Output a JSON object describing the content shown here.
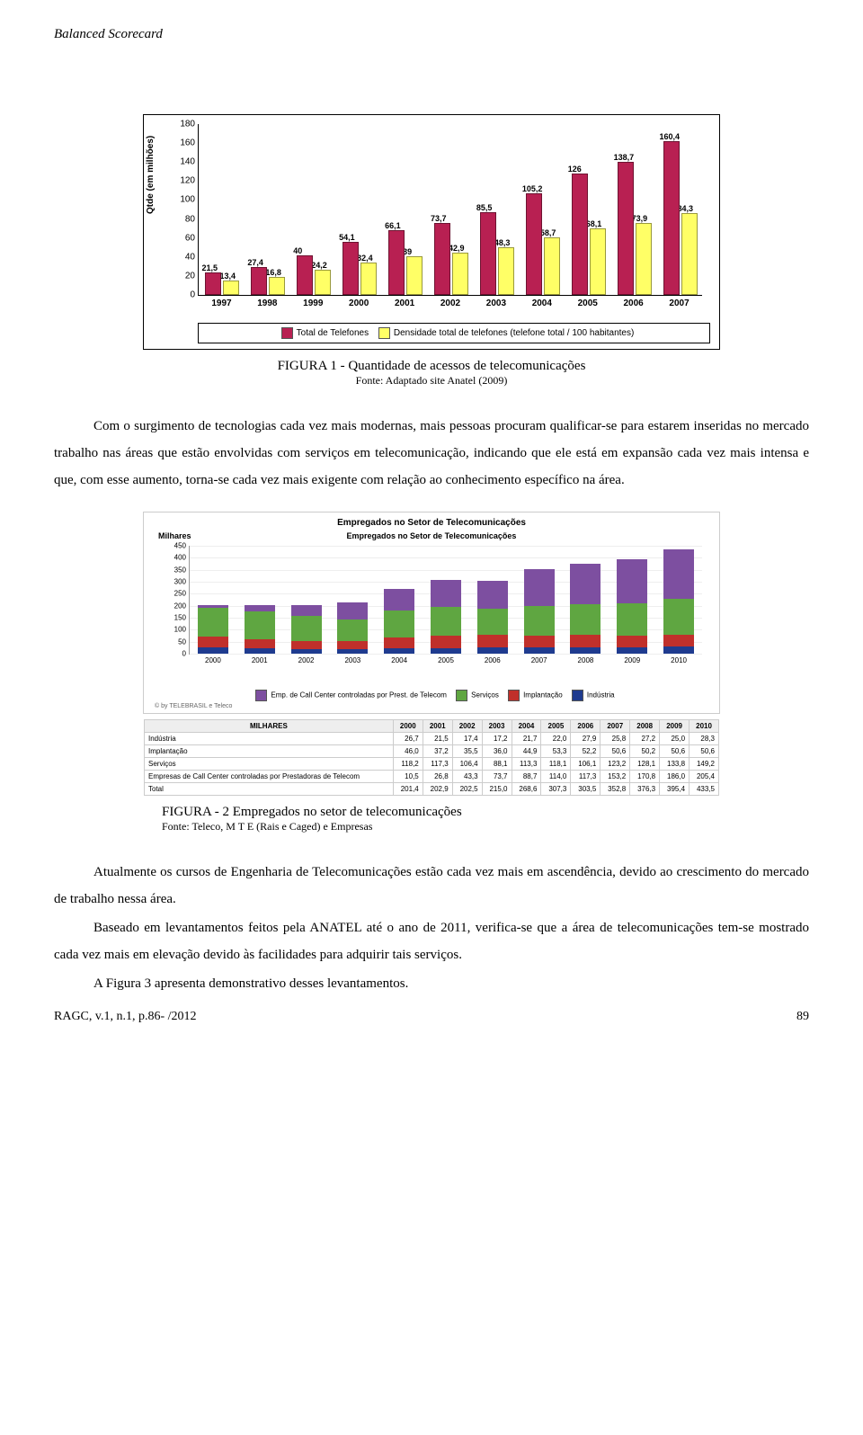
{
  "header": {
    "running_title": "Balanced Scorecard"
  },
  "chart1": {
    "type": "grouped-bar",
    "ylabel": "Qtde (em milhões)",
    "ymax": 180,
    "ytick_step": 20,
    "categories": [
      "1997",
      "1998",
      "1999",
      "2000",
      "2001",
      "2002",
      "2003",
      "2004",
      "2005",
      "2006",
      "2007"
    ],
    "series": [
      {
        "name": "Total de Telefones",
        "color": "#b82052",
        "values": [
          21.5,
          27.4,
          40,
          54.1,
          66.1,
          73.7,
          85.5,
          105.2,
          126,
          138.7,
          160.4
        ]
      },
      {
        "name": "Densidade total de telefones (telefone total / 100 habitantes)",
        "color": "#ffff66",
        "values": [
          13.4,
          16.8,
          24.2,
          32.4,
          39,
          42.9,
          48.3,
          58.7,
          68.1,
          73.9,
          84.3
        ]
      }
    ],
    "legend_text": "Total de Telefones    Densidade total de telefones (telefone total / 100 habitantes)",
    "box_border": "#000000"
  },
  "fig1": {
    "caption": "FIGURA 1 - Quantidade de acessos de telecomunicações",
    "source": "Fonte: Adaptado site Anatel (2009)"
  },
  "para1": "Com o surgimento de tecnologias cada vez mais modernas, mais pessoas procuram qualificar-se para estarem inseridas no mercado trabalho nas áreas que estão envolvidas com serviços em telecomunicação, indicando que ele está em expansão cada vez mais intensa e que, com esse aumento, torna-se cada vez mais exigente com relação ao conhecimento específico na área.",
  "chart2": {
    "type": "stacked-bar",
    "title": "Empregados no Setor de Telecomunicações",
    "y_sub": "Milhares",
    "subtitle": "Empregados no Setor de Telecomunicações",
    "ymax": 450,
    "ytick_step": 50,
    "categories": [
      "2000",
      "2001",
      "2002",
      "2003",
      "2004",
      "2005",
      "2006",
      "2007",
      "2008",
      "2009",
      "2010"
    ],
    "stack": [
      {
        "name": "Indústria",
        "color": "#1f3b8f",
        "values": [
          26.7,
          21.5,
          17.4,
          17.2,
          21.7,
          22.0,
          27.9,
          25.8,
          27.2,
          25.0,
          28.3
        ]
      },
      {
        "name": "Implantação",
        "color": "#c0302b",
        "values": [
          46.0,
          37.2,
          35.5,
          36.0,
          44.9,
          53.3,
          52.2,
          50.6,
          50.2,
          50.6,
          50.6
        ]
      },
      {
        "name": "Serviços",
        "color": "#5fa641",
        "values": [
          118.2,
          117.3,
          106.4,
          88.1,
          113.3,
          118.1,
          106.1,
          123.2,
          128.1,
          133.8,
          149.2
        ]
      },
      {
        "name": "Emp. de Call Center controladas por Prest. de Telecom",
        "color": "#7d4fa0",
        "values": [
          10.5,
          26.8,
          43.3,
          73.7,
          88.7,
          114.0,
          117.3,
          153.2,
          170.8,
          186.0,
          205.4
        ]
      }
    ],
    "legend_order": [
      "Emp. de Call Center controladas por Prest. de Telecom",
      "Serviços",
      "Implantação",
      "Indústria"
    ],
    "credit": "© by TELEBRASIL e Teleco",
    "table": {
      "header_first": "MILHARES",
      "years": [
        "2000",
        "2001",
        "2002",
        "2003",
        "2004",
        "2005",
        "2006",
        "2007",
        "2008",
        "2009",
        "2010"
      ],
      "rows": [
        {
          "label": "Indústria",
          "vals": [
            "26,7",
            "21,5",
            "17,4",
            "17,2",
            "21,7",
            "22,0",
            "27,9",
            "25,8",
            "27,2",
            "25,0",
            "28,3"
          ]
        },
        {
          "label": "Implantação",
          "vals": [
            "46,0",
            "37,2",
            "35,5",
            "36,0",
            "44,9",
            "53,3",
            "52,2",
            "50,6",
            "50,2",
            "50,6",
            "50,6"
          ]
        },
        {
          "label": "Serviços",
          "vals": [
            "118,2",
            "117,3",
            "106,4",
            "88,1",
            "113,3",
            "118,1",
            "106,1",
            "123,2",
            "128,1",
            "133,8",
            "149,2"
          ]
        },
        {
          "label": "Empresas de Call Center controladas por Prestadoras de Telecom",
          "vals": [
            "10,5",
            "26,8",
            "43,3",
            "73,7",
            "88,7",
            "114,0",
            "117,3",
            "153,2",
            "170,8",
            "186,0",
            "205,4"
          ]
        },
        {
          "label": "Total",
          "vals": [
            "201,4",
            "202,9",
            "202,5",
            "215,0",
            "268,6",
            "307,3",
            "303,5",
            "352,8",
            "376,3",
            "395,4",
            "433,5"
          ]
        }
      ]
    }
  },
  "fig2": {
    "caption": "FIGURA - 2 Empregados no setor de telecomunicações",
    "source": "Fonte: Teleco, M T E (Rais e Caged) e Empresas"
  },
  "para2": "Atualmente os cursos de Engenharia de Telecomunicações estão cada vez mais em ascendência, devido ao crescimento do mercado de trabalho nessa área.",
  "para3": "Baseado em levantamentos feitos pela ANATEL até o ano de 2011, verifica-se que a área de telecomunicações tem-se mostrado cada vez mais em elevação devido às facilidades para adquirir tais serviços.",
  "para4": "A Figura 3 apresenta demonstrativo desses levantamentos.",
  "footer": {
    "cite": "RAGC, v.1, n.1, p.86- /2012",
    "page": "89"
  }
}
